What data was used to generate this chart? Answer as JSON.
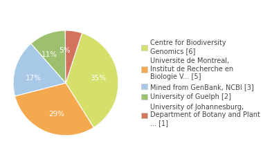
{
  "legend_labels": [
    "Centre for Biodiversity\nGenomics [6]",
    "Universite de Montreal,\nInstitut de Recherche en\nBiologie V... [5]",
    "Mined from GenBank, NCBI [3]",
    "University of Guelph [2]",
    "University of Johannesburg,\nDepartment of Botany and Plant\n... [1]"
  ],
  "values": [
    35,
    29,
    17,
    11,
    5
  ],
  "colors": [
    "#d4e06a",
    "#f5a94e",
    "#a8c8e8",
    "#9dc06e",
    "#d4735e"
  ],
  "pct_labels": [
    "35%",
    "29%",
    "17%",
    "11%",
    "5%"
  ],
  "startangle": 72,
  "background_color": "#ffffff",
  "text_color": "#444444",
  "fontsize": 7.5,
  "legend_fontsize": 7.0
}
